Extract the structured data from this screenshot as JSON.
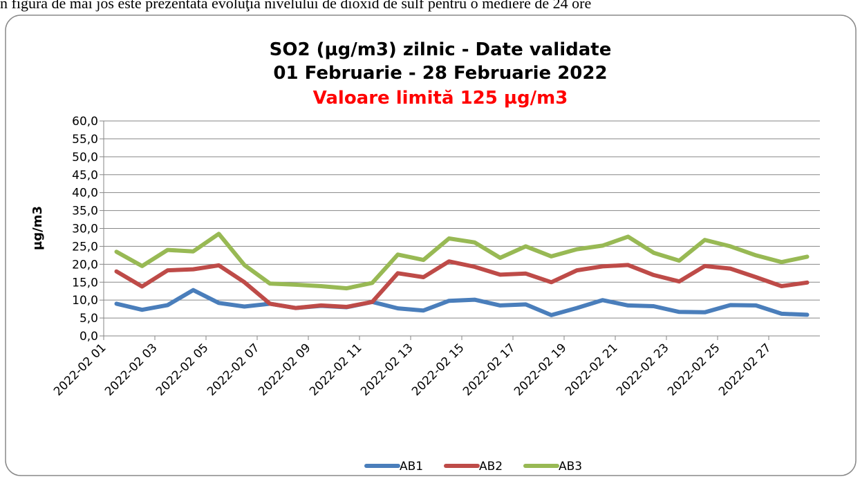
{
  "document_text": "n figura de mai jos este prezentată evoluţia nivelului de dioxid de sulf pentru o mediere de 24 ore",
  "chart_data": {
    "type": "line",
    "title": "SO2 (µg/m3) zilnic - Date validate",
    "subtitle": "01 Februarie - 28 Februarie 2022",
    "annotation": "Valoare limită 125 µg/m3",
    "y_label": "µg/m3",
    "categories": [
      "2022-02 01",
      null,
      "2022-02 03",
      null,
      "2022-02 05",
      null,
      "2022-02 07",
      null,
      "2022-02 09",
      null,
      "2022-02 11",
      null,
      "2022-02 13",
      null,
      "2022-02 15",
      null,
      "2022-02 17",
      null,
      "2022-02 19",
      null,
      "2022-02 21",
      null,
      "2022-02 23",
      null,
      "2022-02 25",
      null,
      "2022-02 27",
      null
    ],
    "series": [
      {
        "name": "AB1",
        "color": "#4a7ebb",
        "values": [
          9.0,
          7.3,
          8.6,
          12.8,
          9.2,
          8.2,
          9.0,
          7.8,
          8.4,
          8.0,
          9.5,
          7.7,
          7.1,
          9.8,
          10.1,
          8.5,
          8.8,
          5.8,
          7.8,
          10.0,
          8.5,
          8.3,
          6.7,
          6.6,
          8.6,
          8.5,
          6.2,
          5.9
        ]
      },
      {
        "name": "AB2",
        "color": "#be4b48",
        "values": [
          18.0,
          13.8,
          18.3,
          18.6,
          19.7,
          15.0,
          9.0,
          7.8,
          8.5,
          8.1,
          9.5,
          17.5,
          16.4,
          20.8,
          19.3,
          17.1,
          17.4,
          15.0,
          18.3,
          19.4,
          19.8,
          17.0,
          15.2,
          19.5,
          18.8,
          16.4,
          13.9,
          14.9
        ]
      },
      {
        "name": "AB3",
        "color": "#98b954",
        "values": [
          23.5,
          19.5,
          24.0,
          23.6,
          28.5,
          19.8,
          14.6,
          14.3,
          13.9,
          13.3,
          14.8,
          22.7,
          21.2,
          27.2,
          26.1,
          21.8,
          25.0,
          22.2,
          24.2,
          25.2,
          27.7,
          23.2,
          21.0,
          26.8,
          25.0,
          22.5,
          20.6,
          22.1
        ]
      }
    ],
    "ylim": [
      0,
      60
    ],
    "yticks": [
      {
        "value": 0,
        "label": "0,0"
      },
      {
        "value": 5,
        "label": "5,0"
      },
      {
        "value": 10,
        "label": "10,0"
      },
      {
        "value": 15,
        "label": "15,0"
      },
      {
        "value": 20,
        "label": "20,0"
      },
      {
        "value": 25,
        "label": "25,0"
      },
      {
        "value": 30,
        "label": "30,0"
      },
      {
        "value": 35,
        "label": "35,0"
      },
      {
        "value": 40,
        "label": "40,0"
      },
      {
        "value": 45,
        "label": "45,0"
      },
      {
        "value": 50,
        "label": "50,0"
      },
      {
        "value": 55,
        "label": "55,0"
      },
      {
        "value": 60,
        "label": "60,0"
      }
    ],
    "grid": true,
    "legend": "bottom",
    "annotation_color": "#ff0000"
  }
}
